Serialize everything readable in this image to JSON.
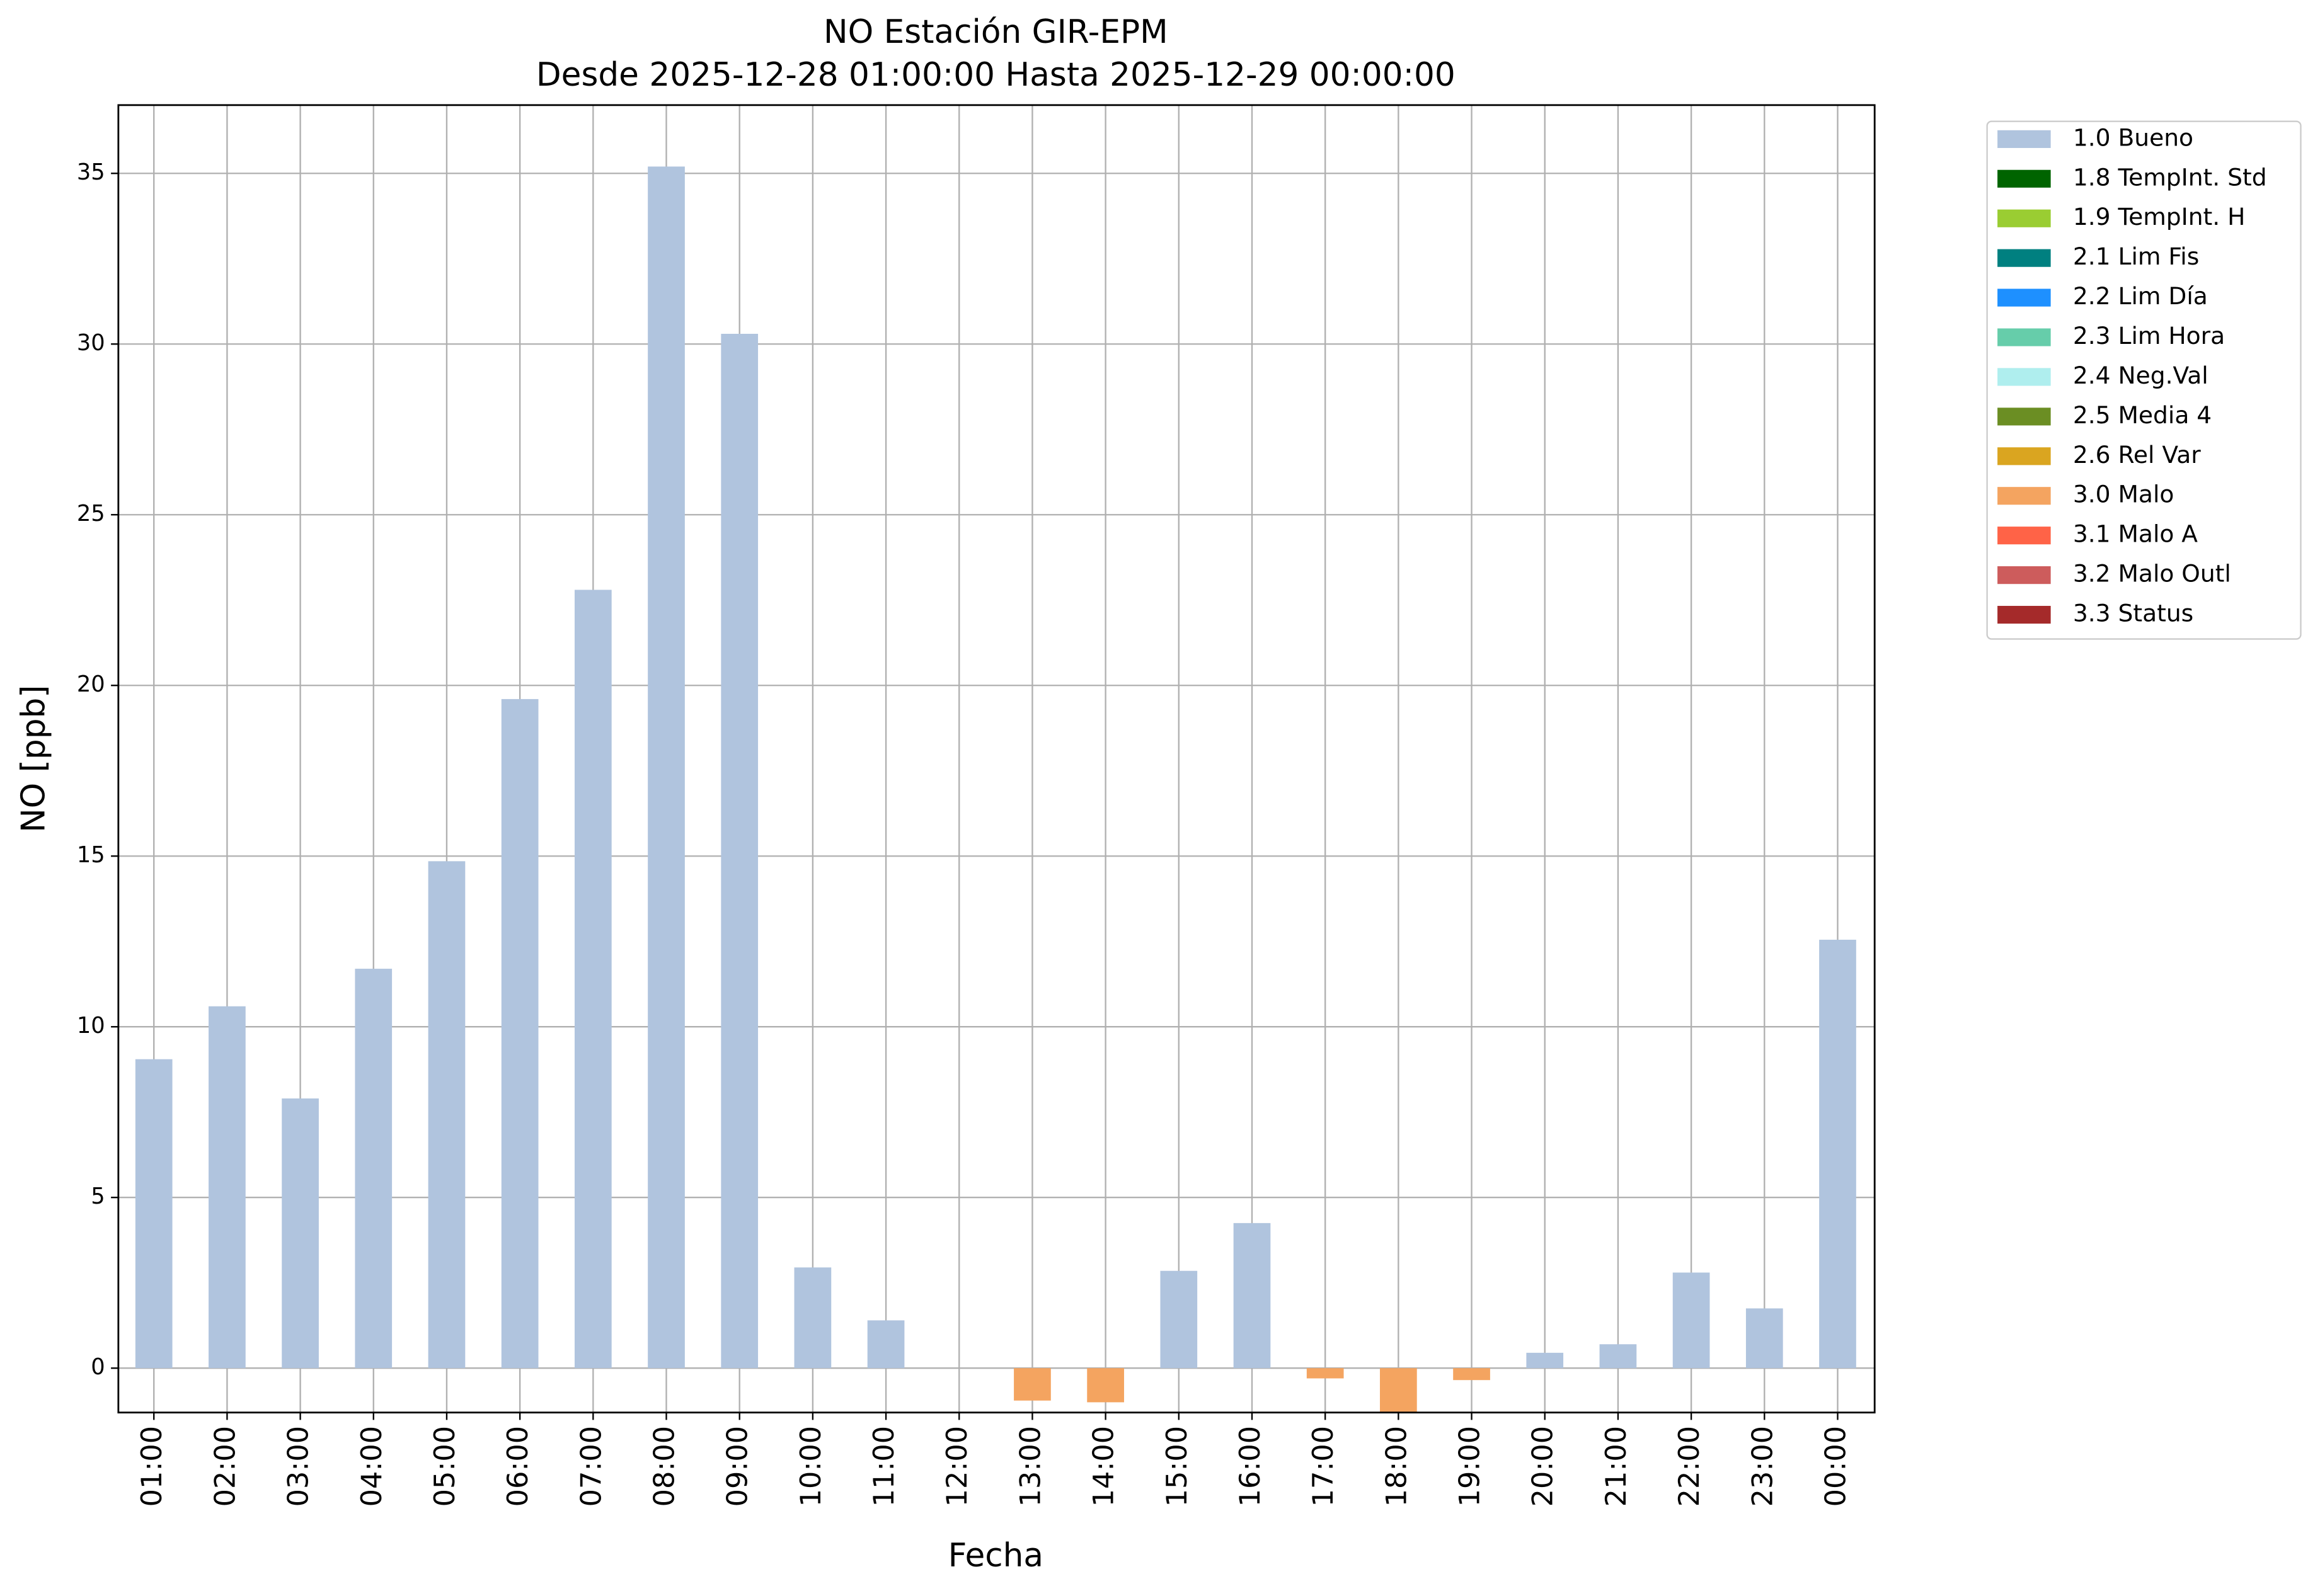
{
  "chart_data": {
    "type": "bar",
    "title": "NO Estación GIR-EPM",
    "subtitle": "Desde 2025-12-28 01:00:00 Hasta 2025-12-29 00:00:00",
    "x_label": "Fecha",
    "y_label": "NO [ppb]",
    "categories": [
      "01:00",
      "02:00",
      "03:00",
      "04:00",
      "05:00",
      "06:00",
      "07:00",
      "08:00",
      "09:00",
      "10:00",
      "11:00",
      "12:00",
      "13:00",
      "14:00",
      "15:00",
      "16:00",
      "17:00",
      "18:00",
      "19:00",
      "20:00",
      "21:00",
      "22:00",
      "23:00",
      "00:00"
    ],
    "series": [
      {
        "name": "1.0 Bueno",
        "color": "#b0c4de",
        "values": [
          9.05,
          10.6,
          7.9,
          11.7,
          14.85,
          19.6,
          22.8,
          35.2,
          30.3,
          2.95,
          1.4,
          null,
          null,
          null,
          2.85,
          4.25,
          null,
          null,
          null,
          0.45,
          0.7,
          2.8,
          1.75,
          12.55
        ]
      },
      {
        "name": "1.8 TempInt. Std",
        "color": "#006400",
        "values": [
          null,
          null,
          null,
          null,
          null,
          null,
          null,
          null,
          null,
          null,
          null,
          null,
          null,
          null,
          null,
          null,
          null,
          null,
          null,
          null,
          null,
          null,
          null,
          null
        ]
      },
      {
        "name": "1.9 TempInt. H",
        "color": "#9acd32",
        "values": [
          null,
          null,
          null,
          null,
          null,
          null,
          null,
          null,
          null,
          null,
          null,
          null,
          null,
          null,
          null,
          null,
          null,
          null,
          null,
          null,
          null,
          null,
          null,
          null
        ]
      },
      {
        "name": "2.1 Lim Fis",
        "color": "#008080",
        "values": [
          null,
          null,
          null,
          null,
          null,
          null,
          null,
          null,
          null,
          null,
          null,
          null,
          null,
          null,
          null,
          null,
          null,
          null,
          null,
          null,
          null,
          null,
          null,
          null
        ]
      },
      {
        "name": "2.2 Lim Día",
        "color": "#1e90ff",
        "values": [
          null,
          null,
          null,
          null,
          null,
          null,
          null,
          null,
          null,
          null,
          null,
          null,
          null,
          null,
          null,
          null,
          null,
          null,
          null,
          null,
          null,
          null,
          null,
          null
        ]
      },
      {
        "name": "2.3 Lim Hora",
        "color": "#66cdaa",
        "values": [
          null,
          null,
          null,
          null,
          null,
          null,
          null,
          null,
          null,
          null,
          null,
          null,
          null,
          null,
          null,
          null,
          null,
          null,
          null,
          null,
          null,
          null,
          null,
          null
        ]
      },
      {
        "name": "2.4 Neg.Val",
        "color": "#afeeee",
        "values": [
          null,
          null,
          null,
          null,
          null,
          null,
          null,
          null,
          null,
          null,
          null,
          null,
          null,
          null,
          null,
          null,
          null,
          null,
          null,
          null,
          null,
          null,
          null,
          null
        ]
      },
      {
        "name": "2.5 Media 4",
        "color": "#6b8e23",
        "values": [
          null,
          null,
          null,
          null,
          null,
          null,
          null,
          null,
          null,
          null,
          null,
          null,
          null,
          null,
          null,
          null,
          null,
          null,
          null,
          null,
          null,
          null,
          null,
          null
        ]
      },
      {
        "name": "2.6 Rel Var",
        "color": "#daa520",
        "values": [
          null,
          null,
          null,
          null,
          null,
          null,
          null,
          null,
          null,
          null,
          null,
          null,
          null,
          null,
          null,
          null,
          null,
          null,
          null,
          null,
          null,
          null,
          null,
          null
        ]
      },
      {
        "name": "3.0 Malo",
        "color": "#f4a460",
        "values": [
          null,
          null,
          null,
          null,
          null,
          null,
          null,
          null,
          null,
          null,
          null,
          null,
          -0.95,
          -1.0,
          null,
          null,
          -0.3,
          -1.3,
          -0.35,
          null,
          null,
          null,
          null,
          null
        ]
      },
      {
        "name": "3.1 Malo A",
        "color": "#ff6347",
        "values": [
          null,
          null,
          null,
          null,
          null,
          null,
          null,
          null,
          null,
          null,
          null,
          null,
          null,
          null,
          null,
          null,
          null,
          null,
          null,
          null,
          null,
          null,
          null,
          null
        ]
      },
      {
        "name": "3.2 Malo Outl",
        "color": "#cd5c5c",
        "values": [
          null,
          null,
          null,
          null,
          null,
          null,
          null,
          null,
          null,
          null,
          null,
          null,
          null,
          null,
          null,
          null,
          null,
          null,
          null,
          null,
          null,
          null,
          null,
          null
        ]
      },
      {
        "name": "3.3 Status",
        "color": "#a52a2a",
        "values": [
          null,
          null,
          null,
          null,
          null,
          null,
          null,
          null,
          null,
          null,
          null,
          null,
          null,
          null,
          null,
          null,
          null,
          null,
          null,
          null,
          null,
          null,
          null,
          null
        ]
      }
    ],
    "ylim": [
      -1.3,
      37
    ],
    "yticks": [
      0,
      5,
      10,
      15,
      20,
      25,
      30,
      35
    ],
    "grid": true,
    "legend": "outside upper right"
  }
}
